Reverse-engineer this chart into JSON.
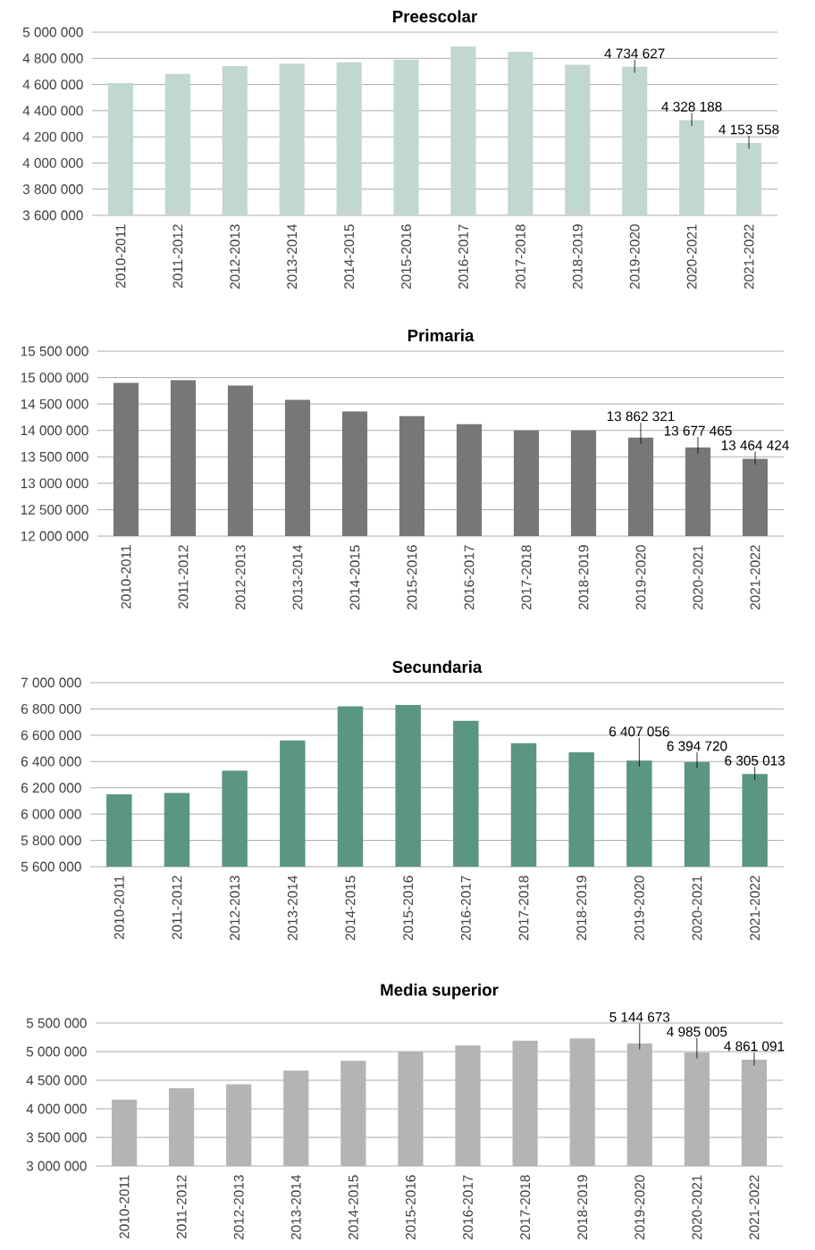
{
  "chart_data": [
    {
      "type": "bar",
      "title": "Preescolar",
      "categories": [
        "2010-2011",
        "2011-2012",
        "2012-2013",
        "2013-2014",
        "2014-2015",
        "2015-2016",
        "2016-2017",
        "2017-2018",
        "2018-2019",
        "2019-2020",
        "2020-2021",
        "2021-2022"
      ],
      "values": [
        4610000,
        4680000,
        4740000,
        4760000,
        4770000,
        4790000,
        4890000,
        4850000,
        4750000,
        4734627,
        4328188,
        4153558
      ],
      "color": "#c1d7d0",
      "ylim": [
        3600000,
        5000000
      ],
      "yticks": [
        {
          "value": 3600000,
          "label": "3 600 000"
        },
        {
          "value": 3800000,
          "label": "3 800 000"
        },
        {
          "value": 4000000,
          "label": "4 000 000"
        },
        {
          "value": 4200000,
          "label": "4 200 000"
        },
        {
          "value": 4400000,
          "label": "4 400 000"
        },
        {
          "value": 4600000,
          "label": "4 600 000"
        },
        {
          "value": 4800000,
          "label": "4 800 000"
        },
        {
          "value": 5000000,
          "label": "5 000 000"
        }
      ],
      "grid": "y",
      "value_labels": [
        null,
        null,
        null,
        null,
        null,
        null,
        null,
        null,
        null,
        "4 734 627",
        "4 328 188",
        "4 153 558"
      ]
    },
    {
      "type": "bar",
      "title": "Primaria",
      "categories": [
        "2010-2011",
        "2011-2012",
        "2012-2013",
        "2013-2014",
        "2014-2015",
        "2015-2016",
        "2016-2017",
        "2017-2018",
        "2018-2019",
        "2019-2020",
        "2020-2021",
        "2021-2022"
      ],
      "values": [
        14900000,
        14950000,
        14850000,
        14580000,
        14360000,
        14270000,
        14120000,
        14000000,
        14000000,
        13862321,
        13677465,
        13464424
      ],
      "color": "#767776",
      "ylim": [
        12000000,
        15500000
      ],
      "yticks": [
        {
          "value": 12000000,
          "label": "12 000 000"
        },
        {
          "value": 12500000,
          "label": "12 500 000"
        },
        {
          "value": 13000000,
          "label": "13 000 000"
        },
        {
          "value": 13500000,
          "label": "13 500 000"
        },
        {
          "value": 14000000,
          "label": "14 000 000"
        },
        {
          "value": 14500000,
          "label": "14 500 000"
        },
        {
          "value": 15000000,
          "label": "15 000 000"
        },
        {
          "value": 15500000,
          "label": "15 500 000"
        }
      ],
      "grid": "y",
      "value_labels": [
        null,
        null,
        null,
        null,
        null,
        null,
        null,
        null,
        null,
        "13 862 321",
        "13 677 465",
        "13 464 424"
      ]
    },
    {
      "type": "bar",
      "title": "Secundaria",
      "categories": [
        "2010-2011",
        "2011-2012",
        "2012-2013",
        "2013-2014",
        "2014-2015",
        "2015-2016",
        "2016-2017",
        "2017-2018",
        "2018-2019",
        "2019-2020",
        "2020-2021",
        "2021-2022"
      ],
      "values": [
        6150000,
        6160000,
        6330000,
        6560000,
        6820000,
        6830000,
        6710000,
        6540000,
        6470000,
        6407056,
        6394720,
        6305013
      ],
      "color": "#5b9584",
      "ylim": [
        5600000,
        7000000
      ],
      "yticks": [
        {
          "value": 5600000,
          "label": "5 600 000"
        },
        {
          "value": 5800000,
          "label": "5 800 000"
        },
        {
          "value": 6000000,
          "label": "6 000 000"
        },
        {
          "value": 6200000,
          "label": "6 200 000"
        },
        {
          "value": 6400000,
          "label": "6 400 000"
        },
        {
          "value": 6600000,
          "label": "6 600 000"
        },
        {
          "value": 6800000,
          "label": "6 800 000"
        },
        {
          "value": 7000000,
          "label": "7 000 000"
        }
      ],
      "grid": "y",
      "value_labels": [
        null,
        null,
        null,
        null,
        null,
        null,
        null,
        null,
        null,
        "6 407 056",
        "6 394 720",
        "6 305 013"
      ]
    },
    {
      "type": "bar",
      "title": "Media superior",
      "categories": [
        "2010-2011",
        "2011-2012",
        "2012-2013",
        "2013-2014",
        "2014-2015",
        "2015-2016",
        "2016-2017",
        "2017-2018",
        "2018-2019",
        "2019-2020",
        "2020-2021",
        "2021-2022"
      ],
      "values": [
        4160000,
        4360000,
        4430000,
        4670000,
        4840000,
        5000000,
        5110000,
        5190000,
        5230000,
        5144673,
        4985005,
        4861091
      ],
      "color": "#b4b4b4",
      "ylim": [
        3000000,
        5500000
      ],
      "yticks": [
        {
          "value": 3000000,
          "label": "3 000 000"
        },
        {
          "value": 3500000,
          "label": "3 500 000"
        },
        {
          "value": 4000000,
          "label": "4 000 000"
        },
        {
          "value": 4500000,
          "label": "4 500 000"
        },
        {
          "value": 5000000,
          "label": "5 000 000"
        },
        {
          "value": 5500000,
          "label": "5 500 000"
        }
      ],
      "grid": "y",
      "value_labels": [
        null,
        null,
        null,
        null,
        null,
        null,
        null,
        null,
        null,
        "5 144 673",
        "4 985 005",
        "4 861 091"
      ]
    }
  ]
}
